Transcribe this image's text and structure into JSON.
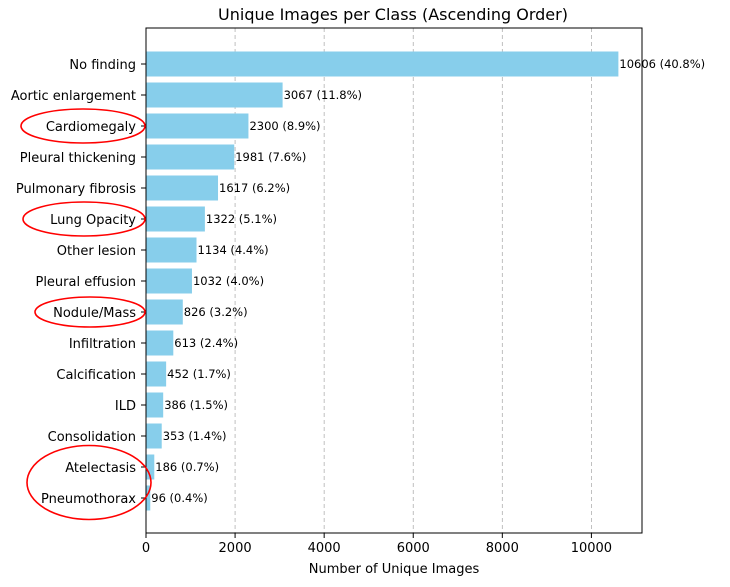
{
  "chart_data": {
    "type": "bar",
    "orientation": "horizontal",
    "title": "Unique Images per Class (Ascending Order)",
    "xlabel": "Number of Unique Images",
    "ylabel": "",
    "xlim": [
      0,
      11136
    ],
    "xticks": [
      0,
      2000,
      4000,
      6000,
      8000,
      10000
    ],
    "grid": "x-dashed",
    "bar_color": "#87ceeb",
    "annotation_color": "#ff0000",
    "categories": [
      "No finding",
      "Aortic enlargement",
      "Cardiomegaly",
      "Pleural thickening",
      "Pulmonary fibrosis",
      "Lung Opacity",
      "Other lesion",
      "Pleural effusion",
      "Nodule/Mass",
      "Infiltration",
      "Calcification",
      "ILD",
      "Consolidation",
      "Atelectasis",
      "Pneumothorax"
    ],
    "values": [
      10606,
      3067,
      2300,
      1981,
      1617,
      1322,
      1134,
      1032,
      826,
      613,
      452,
      386,
      353,
      186,
      96
    ],
    "data_labels": [
      "10606 (40.8%)",
      "3067 (11.8%)",
      "2300 (8.9%)",
      "1981 (7.6%)",
      "1617 (6.2%)",
      "1322 (5.1%)",
      "1134 (4.4%)",
      "1032 (4.0%)",
      "826 (3.2%)",
      "613 (2.4%)",
      "452 (1.7%)",
      "386 (1.5%)",
      "353 (1.4%)",
      "186 (0.7%)",
      "96 (0.4%)"
    ],
    "circled_categories": [
      "Cardiomegaly",
      "Lung Opacity",
      "Nodule/Mass",
      "Atelectasis",
      "Pneumothorax"
    ]
  }
}
